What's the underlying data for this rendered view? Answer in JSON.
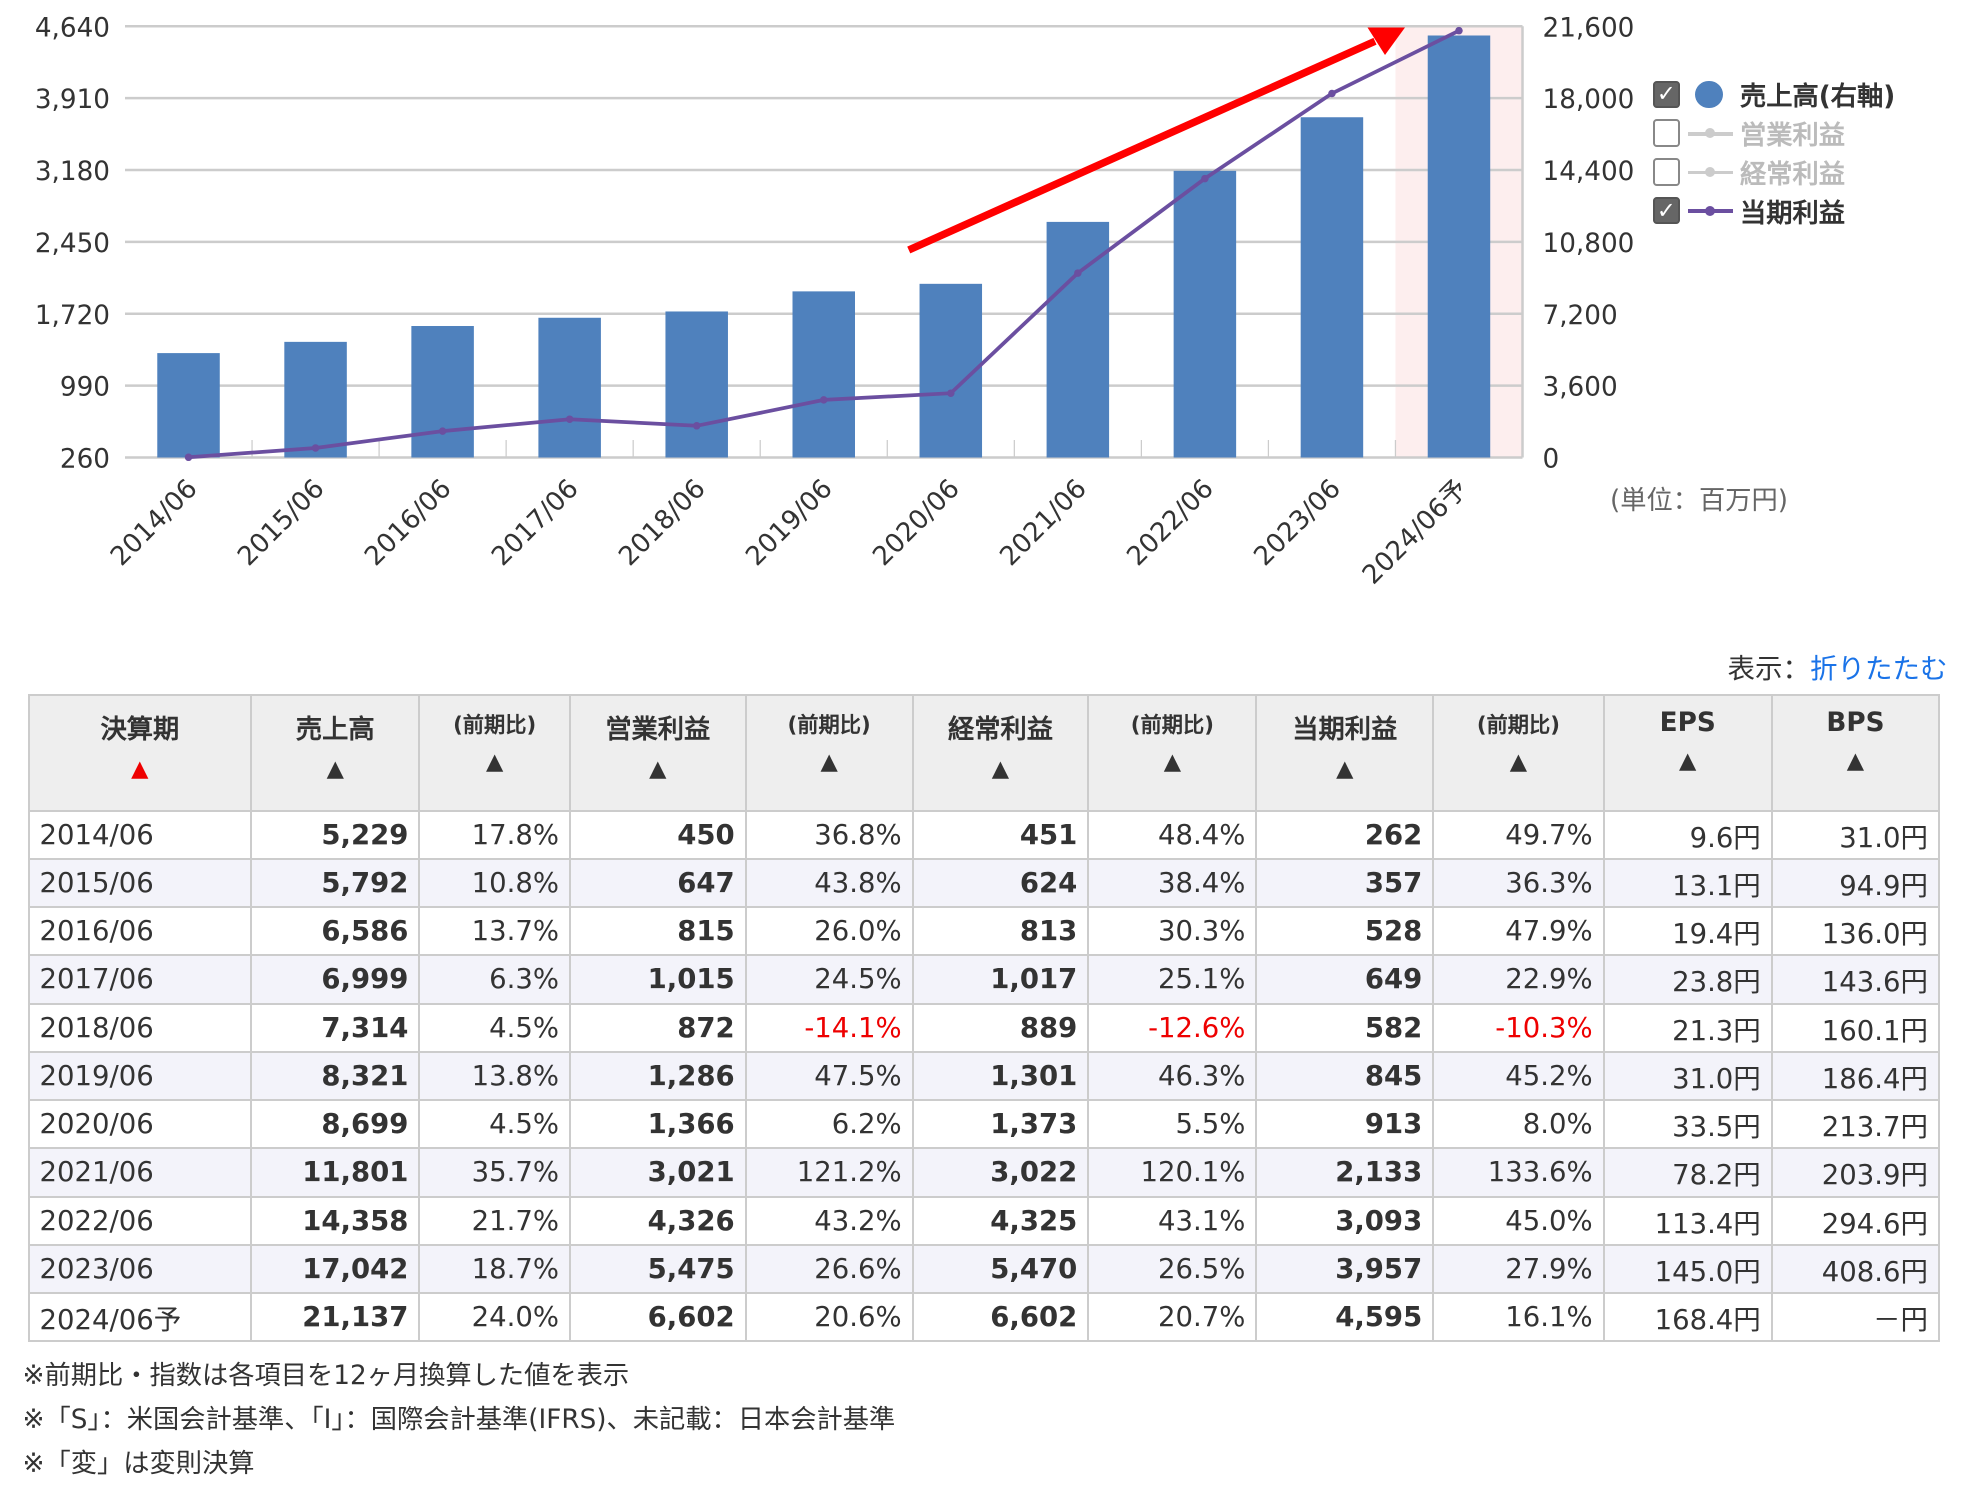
{
  "chart_data": {
    "type": "bar+line",
    "categories": [
      "2014/06",
      "2015/06",
      "2016/06",
      "2017/06",
      "2018/06",
      "2019/06",
      "2020/06",
      "2021/06",
      "2022/06",
      "2023/06",
      "2024/06予"
    ],
    "left_axis": {
      "ticks": [
        "4,640",
        "3,910",
        "3,180",
        "2,450",
        "1,720",
        "990",
        "260"
      ],
      "range": [
        260,
        4640
      ]
    },
    "right_axis": {
      "ticks": [
        "21,600",
        "18,000",
        "14,400",
        "10,800",
        "7,200",
        "3,600",
        "0"
      ],
      "range": [
        0,
        21600
      ]
    },
    "series": [
      {
        "name": "売上高(右軸)",
        "type": "bar",
        "axis": "right",
        "color": "#4f81bd",
        "checked": true,
        "values": [
          5229,
          5792,
          6586,
          6999,
          7314,
          8321,
          8699,
          11801,
          14358,
          17042,
          21137
        ]
      },
      {
        "name": "営業利益",
        "type": "line",
        "checked": false,
        "values": [
          450,
          647,
          815,
          1015,
          872,
          1286,
          1366,
          3021,
          4326,
          5475,
          6602
        ]
      },
      {
        "name": "経常利益",
        "type": "line",
        "checked": false,
        "values": [
          451,
          624,
          813,
          1017,
          889,
          1301,
          1373,
          3022,
          4325,
          5470,
          6602
        ]
      },
      {
        "name": "当期利益",
        "type": "line",
        "axis": "left",
        "color": "#6b4fa0",
        "checked": true,
        "values": [
          262,
          357,
          528,
          649,
          582,
          845,
          913,
          2133,
          3093,
          3957,
          4595
        ]
      }
    ],
    "forecast_highlight": "2024/06予",
    "unit": "(単位：百万円)",
    "grid": true,
    "legend": "right"
  },
  "toggle": {
    "label": "表示：",
    "link": "折りたたむ"
  },
  "table": {
    "headers": [
      {
        "t": "決算期",
        "red": true
      },
      {
        "t": "売上高"
      },
      {
        "t": "(前期比)",
        "s": true
      },
      {
        "t": "営業利益"
      },
      {
        "t": "(前期比)",
        "s": true
      },
      {
        "t": "経常利益"
      },
      {
        "t": "(前期比)",
        "s": true
      },
      {
        "t": "当期利益"
      },
      {
        "t": "(前期比)",
        "s": true
      },
      {
        "t": "EPS"
      },
      {
        "t": "BPS"
      }
    ],
    "sort_icon": "▲",
    "rows": [
      [
        "2014/06",
        "5,229",
        "17.8%",
        "450",
        "36.8%",
        "451",
        "48.4%",
        "262",
        "49.7%",
        "9.6円",
        "31.0円"
      ],
      [
        "2015/06",
        "5,792",
        "10.8%",
        "647",
        "43.8%",
        "624",
        "38.4%",
        "357",
        "36.3%",
        "13.1円",
        "94.9円"
      ],
      [
        "2016/06",
        "6,586",
        "13.7%",
        "815",
        "26.0%",
        "813",
        "30.3%",
        "528",
        "47.9%",
        "19.4円",
        "136.0円"
      ],
      [
        "2017/06",
        "6,999",
        "6.3%",
        "1,015",
        "24.5%",
        "1,017",
        "25.1%",
        "649",
        "22.9%",
        "23.8円",
        "143.6円"
      ],
      [
        "2018/06",
        "7,314",
        "4.5%",
        "872",
        "-14.1%",
        "889",
        "-12.6%",
        "582",
        "-10.3%",
        "21.3円",
        "160.1円"
      ],
      [
        "2019/06",
        "8,321",
        "13.8%",
        "1,286",
        "47.5%",
        "1,301",
        "46.3%",
        "845",
        "45.2%",
        "31.0円",
        "186.4円"
      ],
      [
        "2020/06",
        "8,699",
        "4.5%",
        "1,366",
        "6.2%",
        "1,373",
        "5.5%",
        "913",
        "8.0%",
        "33.5円",
        "213.7円"
      ],
      [
        "2021/06",
        "11,801",
        "35.7%",
        "3,021",
        "121.2%",
        "3,022",
        "120.1%",
        "2,133",
        "133.6%",
        "78.2円",
        "203.9円"
      ],
      [
        "2022/06",
        "14,358",
        "21.7%",
        "4,326",
        "43.2%",
        "4,325",
        "43.1%",
        "3,093",
        "45.0%",
        "113.4円",
        "294.6円"
      ],
      [
        "2023/06",
        "17,042",
        "18.7%",
        "5,475",
        "26.6%",
        "5,470",
        "26.5%",
        "3,957",
        "27.9%",
        "145.0円",
        "408.6円"
      ],
      [
        "2024/06予",
        "21,137",
        "24.0%",
        "6,602",
        "20.6%",
        "6,602",
        "20.7%",
        "4,595",
        "16.1%",
        "168.4円",
        "－円"
      ]
    ]
  },
  "notes": [
    "※前期比・指数は各項目を12ヶ月換算した値を表示",
    "※「S」：米国会計基準、「I」：国際会計基準(IFRS)、未記載：日本会計基準",
    "※「変」は変則決算"
  ]
}
